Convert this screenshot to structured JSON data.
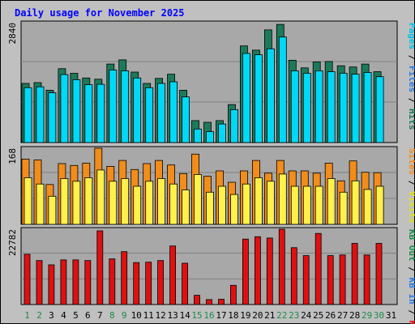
{
  "title": "Daily usage for November 2025",
  "colors": {
    "background": "#c0c0c0",
    "panel": "#a8a8a8",
    "title": "#0000ff",
    "hits": "#1c7a5a",
    "files": "#00d8f8",
    "pages": "#00c0e8",
    "visits": "#f28c1a",
    "sites": "#fff04a",
    "kbytes": "#e01010",
    "weekend": "#1e8a4a",
    "weekday": "#000000"
  },
  "chart_data": [
    {
      "type": "bar",
      "panel": "requests",
      "ymax_label": "2840",
      "ymax": 2840,
      "legend": [
        {
          "text": "Hits",
          "color": "#1c7a5a"
        },
        {
          "text": "Files",
          "color": "#2a7adf"
        },
        {
          "text": "Pages",
          "color": "#00c0e8"
        }
      ],
      "categories": [
        "1",
        "2",
        "3",
        "4",
        "5",
        "6",
        "7",
        "8",
        "9",
        "10",
        "11",
        "12",
        "13",
        "14",
        "15",
        "16",
        "17",
        "18",
        "19",
        "20",
        "21",
        "22",
        "23",
        "24",
        "25",
        "26",
        "27",
        "28",
        "29",
        "30",
        "31"
      ],
      "series": [
        {
          "name": "Hits",
          "values": [
            1400,
            1420,
            1240,
            1750,
            1640,
            1530,
            1500,
            1860,
            1960,
            1670,
            1400,
            1520,
            1620,
            1240,
            520,
            480,
            520,
            900,
            2290,
            2190,
            2670,
            2800,
            1950,
            1770,
            1910,
            1920,
            1820,
            1790,
            1860,
            1680,
            null
          ]
        },
        {
          "name": "Files",
          "values": [
            1300,
            1320,
            1180,
            1610,
            1490,
            1370,
            1380,
            1720,
            1700,
            1530,
            1300,
            1400,
            1440,
            1080,
            320,
            260,
            440,
            780,
            2110,
            2080,
            2220,
            2500,
            1700,
            1640,
            1700,
            1680,
            1640,
            1620,
            1660,
            1560,
            null
          ]
        }
      ]
    },
    {
      "type": "bar",
      "panel": "visits",
      "ymax_label": "168",
      "ymax": 168,
      "legend": [
        {
          "text": "Visits",
          "color": "#e0e020"
        },
        {
          "text": "Sites",
          "color": "#f28c1a"
        }
      ],
      "categories": [
        "1",
        "2",
        "3",
        "4",
        "5",
        "6",
        "7",
        "8",
        "9",
        "10",
        "11",
        "12",
        "13",
        "14",
        "15",
        "16",
        "17",
        "18",
        "19",
        "20",
        "21",
        "22",
        "23",
        "24",
        "25",
        "26",
        "27",
        "28",
        "29",
        "30",
        "31"
      ],
      "series": [
        {
          "name": "Visits",
          "values": [
            144,
            142,
            88,
            134,
            130,
            135,
            168,
            128,
            141,
            121,
            134,
            141,
            131,
            112,
            155,
            106,
            118,
            93,
            118,
            141,
            113,
            141,
            118,
            118,
            113,
            135,
            96,
            140,
            115,
            114,
            null
          ]
        },
        {
          "name": "Sites",
          "values": [
            103,
            89,
            62,
            101,
            95,
            103,
            120,
            95,
            101,
            84,
            95,
            101,
            89,
            76,
            110,
            71,
            84,
            66,
            89,
            103,
            95,
            111,
            84,
            84,
            84,
            101,
            71,
            96,
            77,
            84,
            null
          ]
        }
      ]
    },
    {
      "type": "bar",
      "panel": "kbytes",
      "ymax_label": "22782",
      "ymax": 22782,
      "legend": [
        {
          "text": "KB F",
          "color": "#e01010"
        },
        {
          "text": "KB In",
          "color": "#2a7adf"
        },
        {
          "text": "KB Out",
          "color": "#1e8a4a"
        }
      ],
      "categories": [
        "1",
        "2",
        "3",
        "4",
        "5",
        "6",
        "7",
        "8",
        "9",
        "10",
        "11",
        "12",
        "13",
        "14",
        "15",
        "16",
        "17",
        "18",
        "19",
        "20",
        "21",
        "22",
        "23",
        "24",
        "25",
        "26",
        "27",
        "28",
        "29",
        "30",
        "31"
      ],
      "series": [
        {
          "name": "KB F",
          "values": [
            15200,
            13300,
            12000,
            13500,
            13500,
            13300,
            22300,
            13800,
            16000,
            12700,
            12800,
            13300,
            17700,
            12500,
            2800,
            1500,
            1600,
            5800,
            19800,
            20500,
            20100,
            22782,
            17200,
            14800,
            21500,
            14800,
            15000,
            18500,
            15000,
            18500,
            null
          ]
        }
      ]
    }
  ],
  "x_axis": {
    "labels": [
      "1",
      "2",
      "3",
      "4",
      "5",
      "6",
      "7",
      "8",
      "9",
      "10",
      "11",
      "12",
      "13",
      "14",
      "15",
      "16",
      "17",
      "18",
      "19",
      "20",
      "21",
      "22",
      "23",
      "24",
      "25",
      "26",
      "27",
      "28",
      "29",
      "30",
      "31"
    ],
    "weekend": [
      1,
      2,
      8,
      9,
      15,
      16,
      22,
      23,
      29,
      30
    ]
  }
}
